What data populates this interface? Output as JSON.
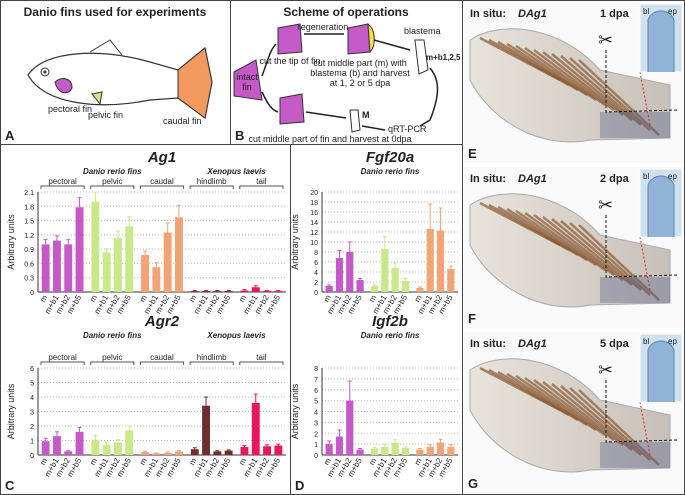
{
  "panel_a": {
    "title": "Danio fins used for experiments",
    "labels": [
      "pectoral fin",
      "pelvic fin",
      "caudal fin"
    ],
    "letter": "A"
  },
  "panel_b": {
    "title": "Scheme of operations",
    "intact": [
      "intact",
      "fin"
    ],
    "cut_tip": "cut the tip of fin",
    "regeneration": "regeneration",
    "blastema": "blastema",
    "harvest_regen": [
      "cut middle part (m) with",
      "blastema (b) and harvest",
      "at 1, 2 or 5 dpa"
    ],
    "m_b": "m+b1,2,5",
    "m": "M",
    "qrt": "qRT-PCR",
    "harvest_0": "cut middle part of fin and harvest at 0dpa",
    "letter": "B"
  },
  "panel_letters": [
    "C",
    "D"
  ],
  "chart_data": [
    {
      "type": "bar",
      "title": "Ag1",
      "ylabel": "Arbitrary units",
      "ylim": [
        0,
        2.1
      ],
      "yticks": [
        0,
        0.3,
        0.6,
        0.9,
        1.2,
        1.5,
        1.8,
        2.1
      ],
      "grid": true,
      "categories": [
        "m",
        "m+b1",
        "m+b2",
        "m+b5"
      ],
      "groups": [
        {
          "name": "Danio rerio fins",
          "series": [
            {
              "name": "pectoral",
              "color": "#c45ac8",
              "values": [
                1.0,
                1.08,
                1.0,
                1.78
              ],
              "errors": [
                0.1,
                0.1,
                0.1,
                0.2
              ]
            },
            {
              "name": "pelvic",
              "color": "#c9e88a",
              "values": [
                1.9,
                0.83,
                1.13,
                1.38
              ],
              "errors": [
                0.2,
                0.08,
                0.15,
                0.2
              ]
            },
            {
              "name": "caudal",
              "color": "#f2a476",
              "values": [
                0.78,
                0.52,
                1.25,
                1.57
              ],
              "errors": [
                0.08,
                0.1,
                0.2,
                0.25
              ]
            }
          ]
        },
        {
          "name": "Xenopus laevis",
          "series": [
            {
              "name": "hindlimb",
              "color": "#8a2a3a",
              "values": [
                0.02,
                0.02,
                0.02,
                0.02
              ],
              "errors": [
                0.01,
                0.01,
                0.01,
                0.01
              ]
            },
            {
              "name": "tail",
              "color": "#e8175d",
              "values": [
                0.03,
                0.1,
                0.02,
                0.02
              ],
              "errors": [
                0.02,
                0.03,
                0.01,
                0.01
              ]
            }
          ]
        }
      ]
    },
    {
      "type": "bar",
      "title": "Agr2",
      "ylabel": "Arbitrary units",
      "ylim": [
        0,
        6
      ],
      "yticks": [
        0,
        1,
        2,
        3,
        4,
        5,
        6
      ],
      "grid": true,
      "categories": [
        "m",
        "m+b1",
        "m+b2",
        "m+b5"
      ],
      "groups": [
        {
          "name": "Danio rerio fins",
          "series": [
            {
              "name": "pectoral",
              "color": "#c45ac8",
              "values": [
                0.95,
                1.3,
                0.25,
                1.6
              ],
              "errors": [
                0.2,
                0.3,
                0.05,
                0.3
              ]
            },
            {
              "name": "pelvic",
              "color": "#c9e88a",
              "values": [
                1.05,
                0.7,
                0.85,
                1.7
              ],
              "errors": [
                0.3,
                0.2,
                0.2,
                0.3
              ]
            },
            {
              "name": "caudal",
              "color": "#f2a476",
              "values": [
                0.2,
                0.1,
                0.15,
                0.25
              ],
              "errors": [
                0.05,
                0.03,
                0.05,
                0.05
              ]
            }
          ]
        },
        {
          "name": "Xenopus laevis",
          "series": [
            {
              "name": "hindlimb",
              "color": "#6e2e2e",
              "values": [
                0.4,
                3.4,
                0.25,
                0.3
              ],
              "errors": [
                0.1,
                0.6,
                0.05,
                0.05
              ]
            },
            {
              "name": "tail",
              "color": "#e8175d",
              "values": [
                0.55,
                3.6,
                0.6,
                0.65
              ],
              "errors": [
                0.1,
                0.6,
                0.1,
                0.1
              ]
            }
          ]
        }
      ]
    },
    {
      "type": "bar",
      "title": "Fgf20a",
      "ylabel": "Arbitrary units",
      "ylim": [
        0,
        20
      ],
      "yticks": [
        0,
        2,
        4,
        6,
        8,
        10,
        12,
        14,
        16,
        18,
        20
      ],
      "grid": true,
      "categories": [
        "m",
        "m+b1",
        "m+b2",
        "m+b5"
      ],
      "groups": [
        {
          "name": "Danio rerio fins",
          "series": [
            {
              "color": "#c45ac8",
              "values": [
                1.2,
                6.8,
                8,
                2.4
              ],
              "errors": [
                0.2,
                1.5,
                2,
                0.3
              ]
            },
            {
              "color": "#c9e88a",
              "values": [
                1.2,
                8.6,
                4.8,
                2.2
              ],
              "errors": [
                0.2,
                2.5,
                1,
                0.5
              ]
            },
            {
              "color": "#f2a476",
              "values": [
                0.8,
                12.6,
                12.3,
                4.6
              ],
              "errors": [
                0.2,
                5,
                4.5,
                0.6
              ]
            }
          ]
        }
      ]
    },
    {
      "type": "bar",
      "title": "Igf2b",
      "ylabel": "Arbitrary units",
      "ylim": [
        0,
        8
      ],
      "yticks": [
        0,
        1,
        2,
        3,
        4,
        5,
        6,
        7,
        8
      ],
      "grid": true,
      "categories": [
        "m",
        "m+b1",
        "m+b2",
        "m+b5"
      ],
      "groups": [
        {
          "name": "Danio rerio fins",
          "series": [
            {
              "color": "#c45ac8",
              "values": [
                1.0,
                1.7,
                5.0,
                0.5
              ],
              "errors": [
                0.3,
                0.6,
                1.8,
                0.1
              ]
            },
            {
              "color": "#c9e88a",
              "values": [
                0.6,
                0.75,
                1.1,
                0.65
              ],
              "errors": [
                0.1,
                0.2,
                0.3,
                0.1
              ]
            },
            {
              "color": "#f2a476",
              "values": [
                0.5,
                0.75,
                1.15,
                0.75
              ],
              "errors": [
                0.1,
                0.2,
                0.3,
                0.2
              ]
            }
          ]
        }
      ]
    }
  ],
  "in_situ": [
    {
      "prefix": "In situ:",
      "gene": "DAg1",
      "stage": "1 dpa",
      "bl": "bl",
      "ep": "ep",
      "letter": "E"
    },
    {
      "prefix": "In situ:",
      "gene": "DAg1",
      "stage": "2 dpa",
      "bl": "bl",
      "ep": "ep",
      "letter": "F"
    },
    {
      "prefix": "In situ:",
      "gene": "DAg1",
      "stage": "5 dpa",
      "bl": "bl",
      "ep": "ep",
      "letter": "G"
    }
  ]
}
